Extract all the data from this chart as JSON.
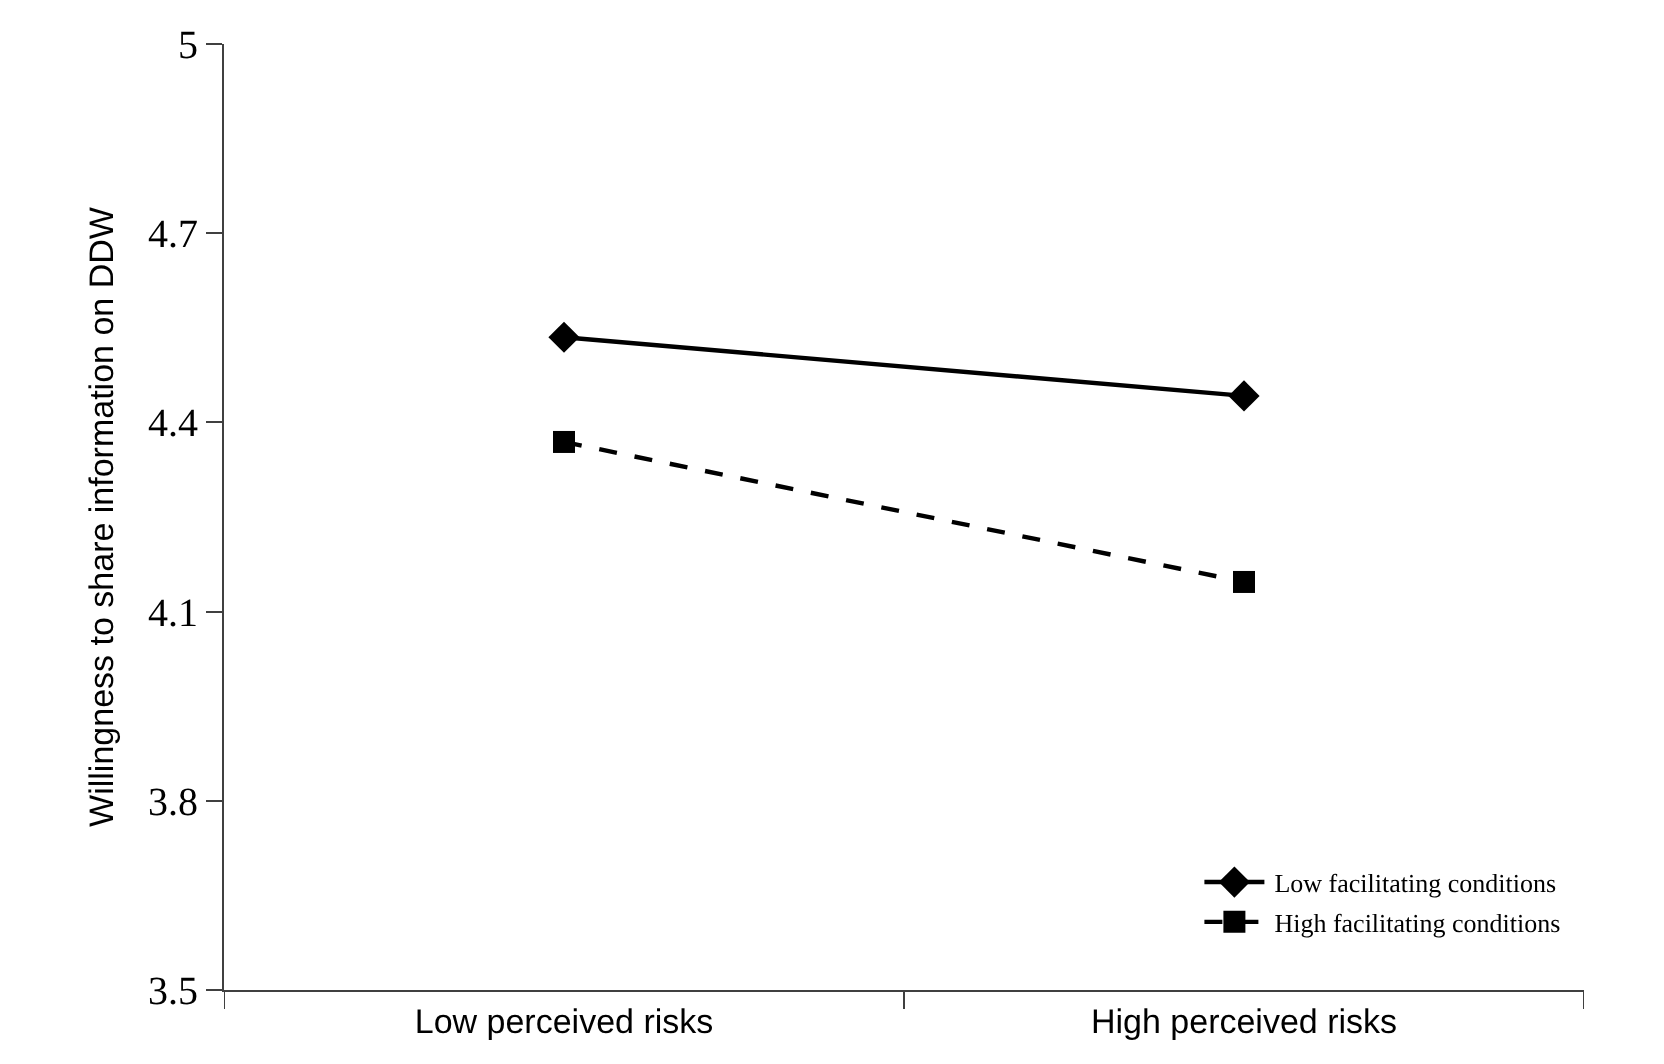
{
  "chart_data": {
    "type": "line",
    "ylabel": "Willingness to share information on DDW",
    "categories": [
      "Low perceived risks",
      "High perceived risks"
    ],
    "series": [
      {
        "name": "Low facilitating conditions",
        "color": "#000000",
        "values": [
          4.535,
          4.442
        ],
        "marker": "diamond",
        "line_style": "solid"
      },
      {
        "name": "High facilitating conditions",
        "color": "#000000",
        "values": [
          4.369,
          4.147
        ],
        "marker": "square",
        "line_style": "dashed"
      }
    ],
    "ylim": [
      3.5,
      5
    ],
    "yticks": [
      3.5,
      3.8,
      4.1,
      4.4,
      4.7,
      5
    ],
    "legend": "bottom right"
  }
}
